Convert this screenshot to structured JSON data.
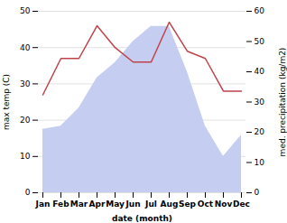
{
  "chart_data": {
    "type": "line",
    "xlabel": "date (month)",
    "ylabel": "max temp (C)",
    "y2label": "med. precipitation (kg/m2)",
    "categories": [
      "Jan",
      "Feb",
      "Mar",
      "Apr",
      "May",
      "Jun",
      "Jul",
      "Aug",
      "Sep",
      "Oct",
      "Nov",
      "Dec"
    ],
    "series": [
      {
        "type": "area",
        "color": "#c5cef0",
        "axis": "y2",
        "values": [
          21,
          22,
          28,
          38,
          43,
          50,
          55,
          55,
          40,
          22,
          12,
          19
        ]
      },
      {
        "type": "line",
        "color": "#c0424a",
        "values": [
          27,
          37,
          37,
          46,
          40,
          36,
          36,
          47,
          39,
          37,
          28,
          28
        ]
      }
    ],
    "ylim": [
      0,
      50
    ],
    "yticks": [
      0,
      10,
      20,
      30,
      40,
      50
    ],
    "y2lim": [
      0,
      60
    ],
    "y2ticks": [
      0,
      10,
      20,
      30,
      40,
      50,
      60
    ],
    "grid": true
  }
}
